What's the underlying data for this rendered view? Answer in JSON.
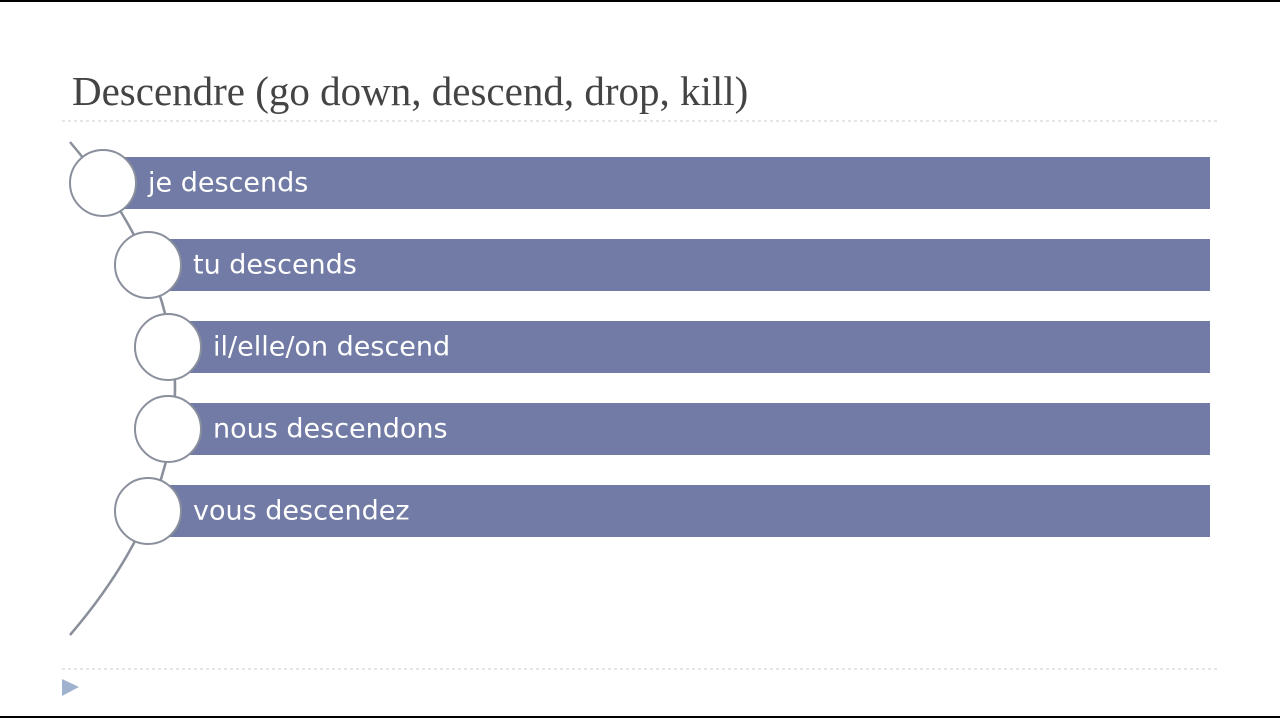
{
  "slide": {
    "title": "Descendre (go down, descend, drop, kill)",
    "items": [
      "je descends",
      "tu descends",
      "il/elle/on descend",
      "nous descendons",
      "vous descendez"
    ]
  }
}
